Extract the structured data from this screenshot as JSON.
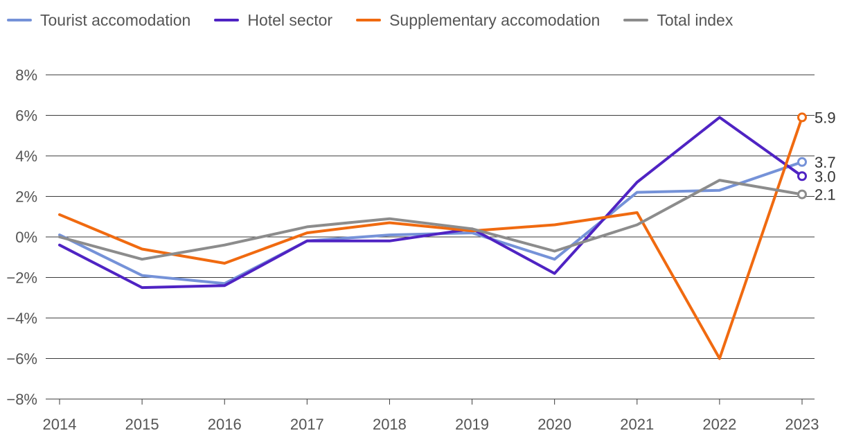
{
  "chart_data": {
    "type": "line",
    "title": "",
    "xlabel": "",
    "ylabel": "",
    "categories": [
      "2014",
      "2015",
      "2016",
      "2017",
      "2018",
      "2019",
      "2020",
      "2021",
      "2022",
      "2023"
    ],
    "ylim": [
      -8,
      8
    ],
    "yticks": [
      -8,
      -6,
      -4,
      -2,
      0,
      2,
      4,
      6,
      8
    ],
    "ytick_labels": [
      "−8%",
      "−6%",
      "−4%",
      "−2%",
      "0%",
      "2%",
      "4%",
      "6%",
      "8%"
    ],
    "grid": true,
    "legend_position": "top-left",
    "series": [
      {
        "name": "Tourist accomodation",
        "color": "#7592d8",
        "values": [
          0.1,
          -1.9,
          -2.3,
          -0.2,
          0.1,
          0.2,
          -1.1,
          2.2,
          2.3,
          3.7
        ],
        "end_label": "3.7"
      },
      {
        "name": "Hotel sector",
        "color": "#4f23c3",
        "values": [
          -0.4,
          -2.5,
          -2.4,
          -0.2,
          -0.2,
          0.4,
          -1.8,
          2.7,
          5.9,
          3.0
        ],
        "end_label": "3.0"
      },
      {
        "name": "Supplementary accomodation",
        "color": "#f06a10",
        "values": [
          1.1,
          -0.6,
          -1.3,
          0.2,
          0.7,
          0.3,
          0.6,
          1.2,
          -6.0,
          5.9
        ],
        "end_label": "5.9"
      },
      {
        "name": "Total index",
        "color": "#8c8c8c",
        "values": [
          0.0,
          -1.1,
          -0.4,
          0.5,
          0.9,
          0.4,
          -0.7,
          0.6,
          2.8,
          2.1
        ],
        "end_label": "2.1"
      }
    ]
  }
}
